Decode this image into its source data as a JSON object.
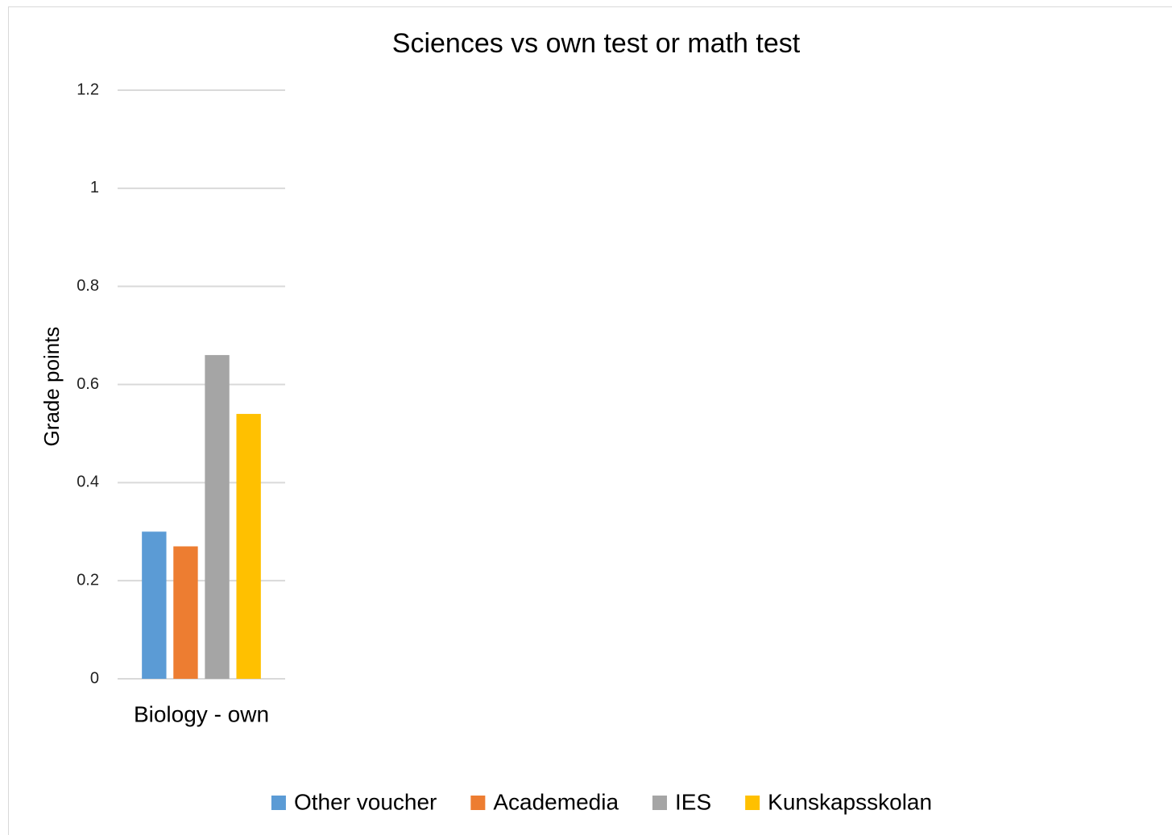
{
  "chart_data": {
    "type": "bar",
    "title": "Sciences vs own test or math test",
    "y_label": "Grade points",
    "categories": [
      "Biology - own"
    ],
    "series": [
      {
        "name": "Other voucher",
        "color": "#5b9bd5",
        "values": [
          0.3
        ]
      },
      {
        "name": "Academedia",
        "color": "#ed7d31",
        "values": [
          0.27
        ]
      },
      {
        "name": "IES",
        "color": "#a5a5a5",
        "values": [
          0.66
        ]
      },
      {
        "name": "Kunskapsskolan",
        "color": "#ffc000",
        "values": [
          0.54
        ]
      }
    ],
    "ylim": [
      0,
      1.2
    ],
    "yticks": [
      0,
      0.2,
      0.4,
      0.6,
      0.8,
      1,
      1.2
    ],
    "grid": true,
    "legend": "bottom"
  }
}
